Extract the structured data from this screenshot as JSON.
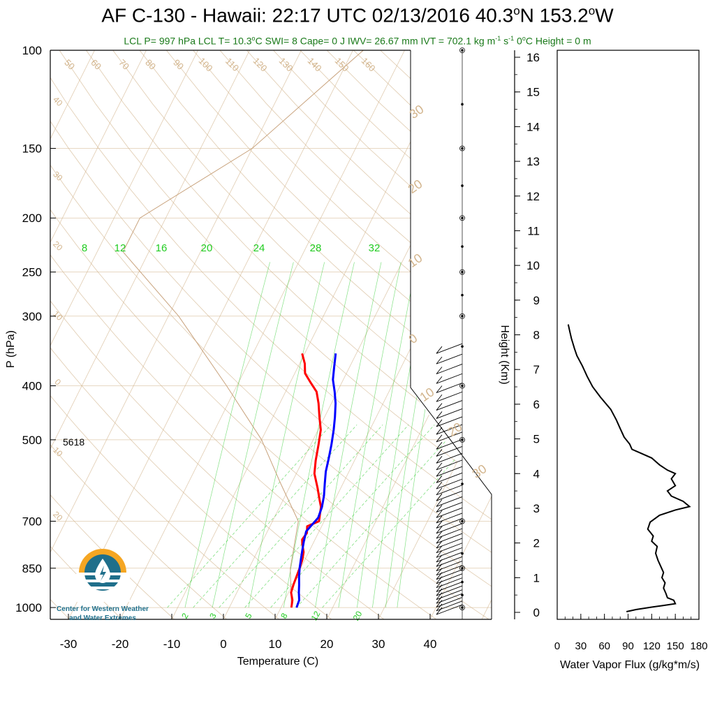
{
  "title": {
    "prefix": "AF C-130 - Hawaii: 22:17 UTC 02/13/2016  40.3",
    "lat_suffix": "N 153.2",
    "lon_suffix": "W"
  },
  "subtitle": {
    "part1": "LCL P= 997 hPa  LCL T= 10.3",
    "part2": "C  SWI= 8  Cape= 0 J  IWV= 26.67 mm  IVT = 702.1 kg m",
    "sup1": "-1",
    "part3": " s",
    "sup2": "-1",
    "part4": "  0",
    "part5": "C Height = 0 m"
  },
  "colors": {
    "temperature": "#ff0000",
    "dewpoint": "#0000ff",
    "isotherm_dry_adiabat": "#d2b48c",
    "mixing_ratio": "#32cd32",
    "subtitle_green": "#1a7a1a",
    "logo_orange": "#f5a623",
    "logo_blue": "#1f6f8b"
  },
  "chart_data": [
    {
      "type": "line",
      "chart_kind": "skew-T log-p diagram",
      "xlabel": "Temperature (C)",
      "ylabel": "P (hPa)",
      "x_ticks": [
        "-30",
        "-20",
        "-10",
        "0",
        "10",
        "20",
        "30",
        "40"
      ],
      "y_ticks": [
        "100",
        "150",
        "200",
        "250",
        "300",
        "400",
        "500",
        "700",
        "850",
        "1000"
      ],
      "annotation_500": "5618",
      "isotherm_labels": [
        "50",
        "60",
        "70",
        "80",
        "90",
        "100",
        "110",
        "120",
        "130",
        "140",
        "150",
        "160"
      ],
      "left_isotherm_labels": [
        "40",
        "30",
        "20",
        "10",
        "0",
        "10",
        "20"
      ],
      "right_isotherm_labels": [
        "30",
        "20",
        "10",
        "0",
        "10",
        "20",
        "30"
      ],
      "mixing_ratio_top_labels": [
        "8",
        "12",
        "16",
        "20",
        "24",
        "28",
        "32"
      ],
      "mixing_ratio_bottom_labels": [
        "2",
        "3",
        "5",
        "8",
        "12",
        "20"
      ],
      "series": [
        {
          "name": "Temperature",
          "points": [
            [
              12.0,
              1000
            ],
            [
              11.5,
              970
            ],
            [
              10.5,
              940
            ],
            [
              10.2,
              910
            ],
            [
              10.0,
              880
            ],
            [
              9.8,
              850
            ],
            [
              9.5,
              820
            ],
            [
              9.0,
              795
            ],
            [
              8.0,
              770
            ],
            [
              7.5,
              755
            ],
            [
              7.8,
              735
            ],
            [
              7.2,
              715
            ],
            [
              9.0,
              700
            ],
            [
              8.5,
              680
            ],
            [
              8.0,
              660
            ],
            [
              7.0,
              640
            ],
            [
              5.5,
              610
            ],
            [
              3.5,
              575
            ],
            [
              2.5,
              545
            ],
            [
              1.5,
              510
            ],
            [
              0.5,
              480
            ],
            [
              -1.0,
              455
            ],
            [
              -2.5,
              430
            ],
            [
              -4.0,
              410
            ],
            [
              -6.0,
              395
            ],
            [
              -8.0,
              380
            ],
            [
              -9.0,
              365
            ],
            [
              -10.5,
              350
            ]
          ]
        },
        {
          "name": "Dewpoint",
          "points": [
            [
              13.0,
              1000
            ],
            [
              12.8,
              970
            ],
            [
              12.0,
              940
            ],
            [
              11.3,
              910
            ],
            [
              10.5,
              880
            ],
            [
              9.8,
              850
            ],
            [
              9.2,
              820
            ],
            [
              8.6,
              790
            ],
            [
              8.0,
              760
            ],
            [
              7.5,
              730
            ],
            [
              8.0,
              710
            ],
            [
              8.5,
              690
            ],
            [
              8.2,
              660
            ],
            [
              7.5,
              630
            ],
            [
              6.5,
              600
            ],
            [
              5.5,
              570
            ],
            [
              4.8,
              540
            ],
            [
              4.0,
              510
            ],
            [
              3.0,
              480
            ],
            [
              2.0,
              455
            ],
            [
              0.8,
              430
            ],
            [
              -0.5,
              410
            ],
            [
              -2.0,
              390
            ],
            [
              -3.0,
              370
            ],
            [
              -4.0,
              350
            ]
          ]
        }
      ],
      "wind_barb_pressures": [
        1000,
        985,
        970,
        955,
        940,
        925,
        910,
        895,
        880,
        865,
        850,
        835,
        820,
        805,
        790,
        775,
        760,
        745,
        730,
        715,
        700,
        685,
        670,
        655,
        640,
        625,
        610,
        595,
        580,
        565,
        550,
        535,
        520,
        505,
        490,
        475,
        460,
        445,
        430,
        415,
        400,
        385,
        370,
        355,
        340
      ]
    },
    {
      "type": "line",
      "xlabel": "Water Vapor Flux (g/kg*m/s)",
      "ylabel": "Height (Km)",
      "x_ticks": [
        "0",
        "30",
        "60",
        "90",
        "120",
        "150",
        "180"
      ],
      "y_ticks": [
        "0",
        "1",
        "2",
        "3",
        "4",
        "5",
        "6",
        "7",
        "8",
        "9",
        "10",
        "11",
        "12",
        "13",
        "14",
        "15",
        "16"
      ],
      "xlim": [
        0,
        180
      ],
      "ylim": [
        0,
        16.5
      ],
      "series": [
        {
          "points": [
            [
              88,
              0.02
            ],
            [
              100,
              0.08
            ],
            [
              120,
              0.15
            ],
            [
              135,
              0.2
            ],
            [
              150,
              0.25
            ],
            [
              148,
              0.35
            ],
            [
              140,
              0.42
            ],
            [
              138,
              0.55
            ],
            [
              135,
              0.7
            ],
            [
              137,
              0.85
            ],
            [
              133,
              1.0
            ],
            [
              135,
              1.15
            ],
            [
              132,
              1.3
            ],
            [
              128,
              1.5
            ],
            [
              125,
              1.7
            ],
            [
              127,
              1.9
            ],
            [
              120,
              2.05
            ],
            [
              122,
              2.2
            ],
            [
              115,
              2.4
            ],
            [
              118,
              2.6
            ],
            [
              130,
              2.8
            ],
            [
              150,
              2.95
            ],
            [
              168,
              3.05
            ],
            [
              160,
              3.2
            ],
            [
              145,
              3.35
            ],
            [
              140,
              3.5
            ],
            [
              150,
              3.65
            ],
            [
              145,
              3.85
            ],
            [
              150,
              4.0
            ],
            [
              140,
              4.1
            ],
            [
              130,
              4.25
            ],
            [
              120,
              4.45
            ],
            [
              105,
              4.6
            ],
            [
              95,
              4.7
            ],
            [
              92,
              4.85
            ],
            [
              85,
              5.05
            ],
            [
              80,
              5.3
            ],
            [
              75,
              5.55
            ],
            [
              68,
              5.85
            ],
            [
              55,
              6.2
            ],
            [
              45,
              6.5
            ],
            [
              38,
              6.8
            ],
            [
              32,
              7.1
            ],
            [
              25,
              7.4
            ],
            [
              22,
              7.6
            ],
            [
              18,
              7.9
            ],
            [
              16,
              8.1
            ],
            [
              14,
              8.3
            ]
          ]
        }
      ]
    }
  ],
  "logo": {
    "line1": "Center for Western Weather",
    "line2": "and Water Extremes"
  }
}
